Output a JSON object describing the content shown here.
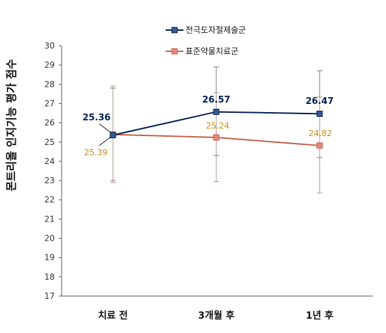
{
  "chart_data": {
    "type": "line",
    "categories": [
      "치료 전",
      "3개월 후",
      "1년 후"
    ],
    "ylabel": "몬트리올 인지기능 평가 점수",
    "ylim": [
      17,
      30
    ],
    "yticks": [
      "17",
      "18",
      "19",
      "20",
      "21",
      "22",
      "23",
      "24",
      "25",
      "26",
      "27",
      "28",
      "29",
      "30"
    ],
    "grid": false,
    "legend_position": "top",
    "series": [
      {
        "name": "전극도자절제술군",
        "values": [
          25.36,
          26.57,
          26.47
        ],
        "labels": [
          "25.36",
          "26.57",
          "26.47"
        ],
        "error_low": [
          23.0,
          24.3,
          24.2
        ],
        "error_high": [
          27.8,
          28.9,
          28.7
        ],
        "color": "#002050",
        "marker_fill": "#3a5a95",
        "label_color": "#002050"
      },
      {
        "name": "표준약물치료군",
        "values": [
          25.39,
          25.24,
          24.82
        ],
        "labels": [
          "25.39",
          "25.24",
          "24.82"
        ],
        "error_low": [
          22.9,
          22.95,
          22.35
        ],
        "error_high": [
          27.9,
          27.55,
          27.35
        ],
        "color": "#c0604a",
        "marker_fill": "#e8867a",
        "label_color": "#c8901a"
      }
    ]
  }
}
